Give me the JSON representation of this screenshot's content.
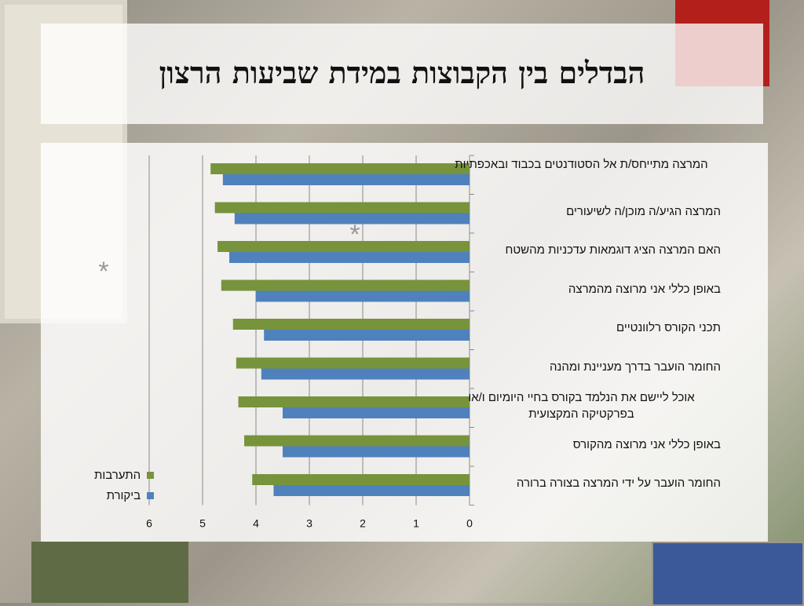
{
  "slide": {
    "title": "הבדלים בין הקבוצות במידת שביעות הרצון"
  },
  "chart_data": {
    "type": "bar",
    "orientation": "horizontal",
    "categories": [
      "המרצה מתייחס/ת אל הסטודנטים בכבוד ובאכפתיות",
      "המרצה הגיע/ה מוכן/ה לשיעורים",
      "האם המרצה הציג דוגמאות עדכניות מהשטח",
      "באופן כללי אני מרוצה מהמרצה",
      "תכני הקורס רלוונטיים",
      "החומר הועבר בדרך מעניינת ומהנה",
      "אוכל ליישם את הנלמד בקורס בחיי היומיום ו/או בפרקטיקה המקצועית",
      "באופן כללי אני מרוצה מהקורס",
      "החומר הועבר על ידי המרצה בצורה ברורה"
    ],
    "series": [
      {
        "name": "התערבות",
        "color": "#77933c",
        "values": [
          4.85,
          4.77,
          4.72,
          4.65,
          4.43,
          4.37,
          4.33,
          4.22,
          4.07
        ]
      },
      {
        "name": "ביקורת",
        "color": "#4f81bd",
        "values": [
          4.62,
          4.4,
          4.5,
          4.0,
          3.85,
          3.9,
          3.5,
          3.5,
          3.67
        ]
      }
    ],
    "xlim": [
      0,
      6
    ],
    "x_ticks": [
      "0",
      "1",
      "2",
      "3",
      "4",
      "5",
      "6"
    ],
    "x_reversed": true,
    "grid": true,
    "legend_position": "left",
    "annotations": [
      "*",
      "*"
    ]
  }
}
